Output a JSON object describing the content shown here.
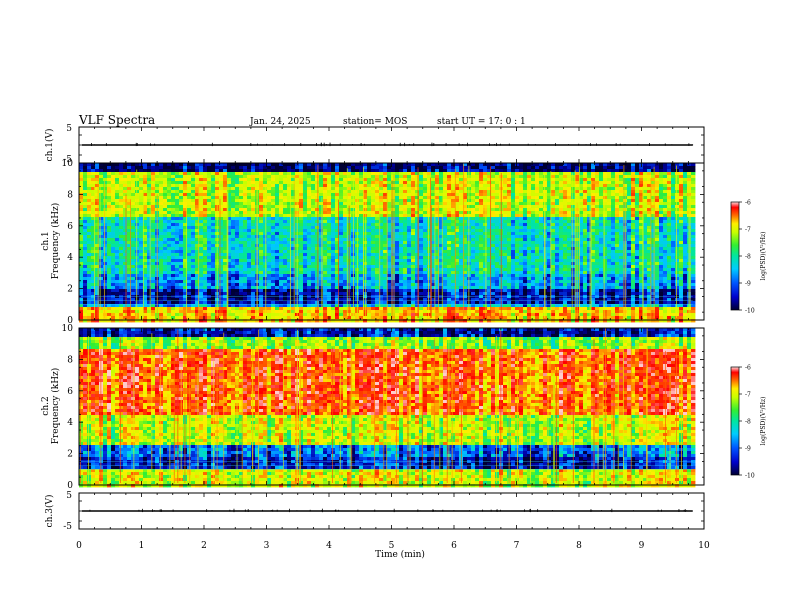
{
  "header": {
    "title": "VLF Spectra",
    "date": "Jan. 24, 2025",
    "station": "station= MOS",
    "start": "start UT =  17: 0  : 1"
  },
  "chart_data": [
    {
      "type": "line",
      "panel": "ch1-waveform",
      "ylabel": "ch.1(V)",
      "ylim": [
        -5,
        5
      ],
      "yticks": [
        "5",
        "-5"
      ],
      "baseline_value": 0
    },
    {
      "type": "heatmap",
      "panel": "ch1-spectrogram",
      "ylabel_top": "ch.1",
      "ylabel": "Frequency (kHz)",
      "ylim": [
        0,
        10
      ],
      "yticks": [
        "0",
        "2",
        "4",
        "6",
        "8",
        "10"
      ],
      "colorbar": {
        "label": "log(PSD)(V²/Hz)",
        "ticks": [
          "-6",
          "-7",
          "-8",
          "-9",
          "-10"
        ],
        "range": [
          -10,
          -6
        ]
      },
      "dominant_bands_khz": [
        [
          6.5,
          9.5
        ],
        [
          0,
          1
        ]
      ]
    },
    {
      "type": "heatmap",
      "panel": "ch2-spectrogram",
      "ylabel_top": "ch.2",
      "ylabel": "Frequency (kHz)",
      "ylim": [
        0,
        10
      ],
      "yticks": [
        "0",
        "2",
        "4",
        "6",
        "8",
        "10"
      ],
      "colorbar": {
        "label": "log(PSD)(V²/Hz)",
        "ticks": [
          "-6",
          "-7",
          "-8",
          "-9",
          "-10"
        ],
        "range": [
          -10,
          -6
        ]
      },
      "dominant_bands_khz": [
        [
          2.5,
          9.5
        ],
        [
          0,
          1
        ]
      ]
    },
    {
      "type": "line",
      "panel": "ch3-waveform",
      "ylabel": "ch.3(V)",
      "ylim": [
        -5,
        5
      ],
      "yticks": [
        "5",
        "-5"
      ],
      "baseline_value": 0
    }
  ],
  "xaxis": {
    "label": "Time (min)",
    "ticks": [
      "0",
      "1",
      "2",
      "3",
      "4",
      "5",
      "6",
      "7",
      "8",
      "9",
      "10"
    ],
    "range": [
      0,
      10
    ],
    "data_end": 9.82
  },
  "colors": {
    "background": "#ffffff",
    "axes": "#000000",
    "colormap": [
      "#000033",
      "#0000aa",
      "#0055ff",
      "#00c8ff",
      "#00e6a0",
      "#33ee33",
      "#c8ff00",
      "#ffee00",
      "#ff6600",
      "#ff0000",
      "#ffcccc"
    ]
  }
}
